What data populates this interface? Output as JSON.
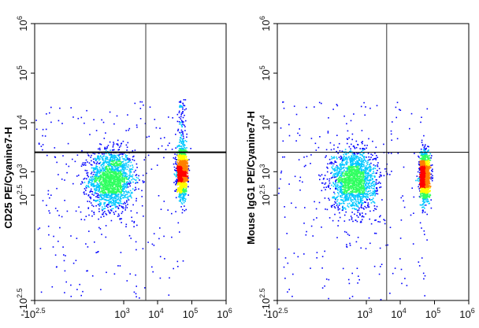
{
  "chart_data": [
    {
      "type": "scatter",
      "style": "flow-cytometry-density-dot-plot",
      "ylabel": "CD25 PE/Cyanine7-H",
      "xlabel": "",
      "x_scale": "biexponential",
      "y_scale": "biexponential",
      "xlim": [
        -316,
        1000000
      ],
      "ylim": [
        -316,
        1000000
      ],
      "x_ticks": [
        {
          "value": -316,
          "base": "-10",
          "exp": "2.5"
        },
        {
          "value": 1000,
          "base": "10",
          "exp": "3"
        },
        {
          "value": 10000,
          "base": "10",
          "exp": "4"
        },
        {
          "value": 100000,
          "base": "10",
          "exp": "5"
        },
        {
          "value": 1000000,
          "base": "10",
          "exp": "6"
        }
      ],
      "y_ticks": [
        {
          "value": -316,
          "base": "-10",
          "exp": "2.5"
        },
        {
          "value": 316,
          "base": "10",
          "exp": "2.5"
        },
        {
          "value": 1000,
          "base": "10",
          "exp": "3"
        },
        {
          "value": 10000,
          "base": "10",
          "exp": "4"
        },
        {
          "value": 100000,
          "base": "10",
          "exp": "5"
        },
        {
          "value": 1000000,
          "base": "10",
          "exp": "6"
        }
      ],
      "quadrant_gate": {
        "x": 4500,
        "y": 2500
      },
      "populations": [
        {
          "label": "low-low cluster",
          "x_center": 400,
          "y_center": 700,
          "density": "high"
        },
        {
          "label": "high-x cluster",
          "x_center": 50000,
          "y_center": 1000,
          "density": "high",
          "tail_up_to_y": 30000
        }
      ],
      "grid": false,
      "legend": "none",
      "colormap": [
        "#0000ff",
        "#00c8ff",
        "#30ff60",
        "#ffff00",
        "#ff8000",
        "#ff0000"
      ]
    },
    {
      "type": "scatter",
      "style": "flow-cytometry-density-dot-plot",
      "ylabel": "Mouse IgG1 PE/Cyanine7-H",
      "xlabel": "",
      "x_scale": "biexponential",
      "y_scale": "biexponential",
      "xlim": [
        -316,
        1000000
      ],
      "ylim": [
        -316,
        1000000
      ],
      "x_ticks": [
        {
          "value": -316,
          "base": "-10",
          "exp": "2.5"
        },
        {
          "value": 1000,
          "base": "10",
          "exp": "3"
        },
        {
          "value": 10000,
          "base": "10",
          "exp": "4"
        },
        {
          "value": 100000,
          "base": "10",
          "exp": "5"
        },
        {
          "value": 1000000,
          "base": "10",
          "exp": "6"
        }
      ],
      "y_ticks": [
        {
          "value": -316,
          "base": "-10",
          "exp": "2.5"
        },
        {
          "value": 316,
          "base": "10",
          "exp": "2.5"
        },
        {
          "value": 1000,
          "base": "10",
          "exp": "3"
        },
        {
          "value": 10000,
          "base": "10",
          "exp": "4"
        },
        {
          "value": 100000,
          "base": "10",
          "exp": "5"
        },
        {
          "value": 1000000,
          "base": "10",
          "exp": "6"
        }
      ],
      "quadrant_gate": {
        "x": 4000,
        "y": 2500
      },
      "populations": [
        {
          "label": "low-low cluster",
          "x_center": 400,
          "y_center": 700,
          "density": "high"
        },
        {
          "label": "high-x cluster",
          "x_center": 50000,
          "y_center": 800,
          "density": "high",
          "tail_up_to_y": 3000
        }
      ],
      "grid": false,
      "legend": "none",
      "colormap": [
        "#0000ff",
        "#00c8ff",
        "#30ff60",
        "#ffff00",
        "#ff8000",
        "#ff0000"
      ]
    }
  ]
}
